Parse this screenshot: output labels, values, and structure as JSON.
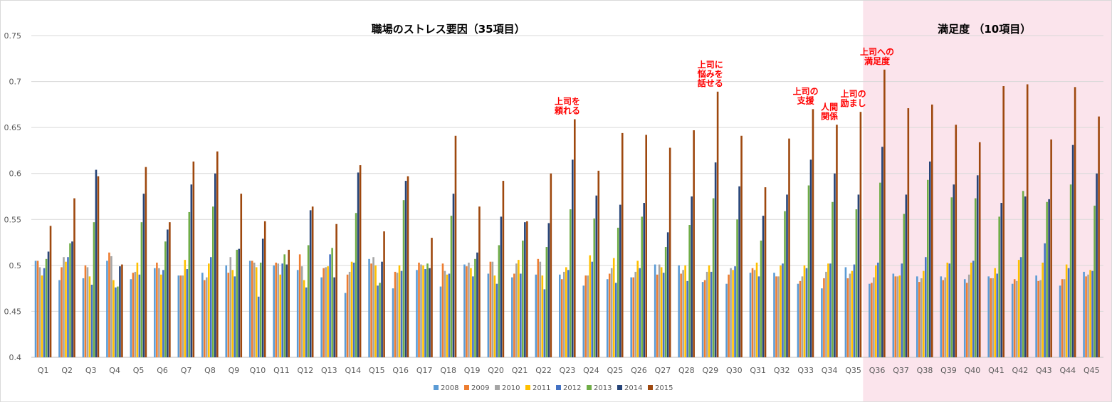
{
  "chart_data": {
    "type": "bar",
    "categories": [
      "Q1",
      "Q2",
      "Q3",
      "Q4",
      "Q5",
      "Q6",
      "Q7",
      "Q8",
      "Q9",
      "Q10",
      "Q11",
      "Q12",
      "Q13",
      "Q14",
      "Q15",
      "Q16",
      "Q17",
      "Q18",
      "Q19",
      "Q20",
      "Q21",
      "Q22",
      "Q23",
      "Q24",
      "Q25",
      "Q26",
      "Q27",
      "Q28",
      "Q29",
      "Q30",
      "Q31",
      "Q32",
      "Q33",
      "Q34",
      "Q35",
      "Q36",
      "Q37",
      "Q38",
      "Q39",
      "Q40",
      "Q41",
      "Q42",
      "Q43",
      "Q44",
      "Q45"
    ],
    "ylim": [
      0.4,
      0.75
    ],
    "yticks": [
      0.4,
      0.45,
      0.5,
      0.55,
      0.6,
      0.65,
      0.7,
      0.75
    ],
    "ytick_labels": [
      "0.4",
      "0.45",
      "0.5",
      "0.55",
      "0.6",
      "0.65",
      "0.7",
      "0.75"
    ],
    "grid": true,
    "legend_position": "bottom",
    "series": [
      {
        "name": "2008",
        "color": "#5b9bd5",
        "values": [
          0.505,
          0.484,
          0.486,
          0.505,
          0.485,
          0.497,
          0.489,
          0.492,
          0.5,
          0.505,
          0.5,
          0.495,
          0.487,
          0.47,
          0.507,
          0.475,
          0.495,
          0.477,
          0.501,
          0.491,
          0.487,
          0.49,
          0.49,
          0.478,
          0.485,
          0.487,
          0.501,
          0.5,
          0.482,
          0.48,
          0.492,
          0.492,
          0.48,
          0.475,
          0.498,
          0.48,
          0.491,
          0.488,
          0.488,
          0.485,
          0.488,
          0.48,
          0.489,
          0.478,
          0.493
        ]
      },
      {
        "name": "2009",
        "color": "#ed7d31",
        "values": [
          0.505,
          0.498,
          0.5,
          0.514,
          0.492,
          0.503,
          0.489,
          0.484,
          0.492,
          0.505,
          0.503,
          0.512,
          0.497,
          0.49,
          0.502,
          0.493,
          0.503,
          0.502,
          0.499,
          0.504,
          0.491,
          0.507,
          0.485,
          0.489,
          0.491,
          0.487,
          0.49,
          0.491,
          0.484,
          0.49,
          0.497,
          0.488,
          0.483,
          0.486,
          0.486,
          0.481,
          0.488,
          0.482,
          0.484,
          0.481,
          0.486,
          0.485,
          0.483,
          0.485,
          0.488
        ]
      },
      {
        "name": "2010",
        "color": "#a5a5a5",
        "values": [
          0.498,
          0.509,
          0.498,
          0.51,
          0.493,
          0.497,
          0.489,
          0.487,
          0.509,
          0.503,
          0.502,
          0.499,
          0.498,
          0.493,
          0.509,
          0.492,
          0.501,
          0.494,
          0.503,
          0.504,
          0.502,
          0.504,
          0.493,
          0.489,
          0.497,
          0.493,
          0.501,
          0.495,
          0.493,
          0.497,
          0.495,
          0.488,
          0.488,
          0.493,
          0.491,
          0.487,
          0.488,
          0.486,
          0.487,
          0.49,
          0.486,
          0.483,
          0.484,
          0.485,
          0.49
        ]
      },
      {
        "name": "2011",
        "color": "#ffc000",
        "values": [
          0.489,
          0.504,
          0.488,
          0.484,
          0.503,
          0.49,
          0.506,
          0.502,
          0.495,
          0.498,
          0.49,
          0.484,
          0.499,
          0.504,
          0.5,
          0.5,
          0.5,
          0.49,
          0.497,
          0.489,
          0.506,
          0.489,
          0.498,
          0.511,
          0.508,
          0.505,
          0.498,
          0.5,
          0.5,
          0.495,
          0.503,
          0.5,
          0.5,
          0.502,
          0.494,
          0.5,
          0.489,
          0.494,
          0.503,
          0.503,
          0.497,
          0.506,
          0.503,
          0.501,
          0.495
        ]
      },
      {
        "name": "2012",
        "color": "#4472c4",
        "values": [
          0.497,
          0.509,
          0.479,
          0.476,
          0.49,
          0.495,
          0.496,
          0.509,
          0.488,
          0.466,
          0.502,
          0.476,
          0.512,
          0.503,
          0.478,
          0.494,
          0.496,
          0.491,
          0.488,
          0.48,
          0.491,
          0.474,
          0.495,
          0.504,
          0.481,
          0.497,
          0.492,
          0.483,
          0.493,
          0.499,
          0.488,
          0.502,
          0.497,
          0.502,
          0.501,
          0.503,
          0.502,
          0.509,
          0.502,
          0.505,
          0.491,
          0.509,
          0.524,
          0.497,
          0.494
        ]
      },
      {
        "name": "2013",
        "color": "#70ad47",
        "values": [
          0.507,
          0.524,
          0.547,
          0.477,
          0.547,
          0.526,
          0.558,
          0.564,
          0.517,
          0.503,
          0.512,
          0.522,
          0.519,
          0.557,
          0.481,
          0.571,
          0.502,
          0.554,
          0.507,
          0.522,
          0.527,
          0.52,
          0.561,
          0.551,
          0.541,
          0.553,
          0.52,
          0.544,
          0.573,
          0.55,
          0.527,
          0.559,
          0.587,
          0.569,
          0.561,
          0.59,
          0.556,
          0.593,
          0.574,
          0.573,
          0.553,
          0.581,
          0.569,
          0.588,
          0.565
        ]
      },
      {
        "name": "2014",
        "color": "#264478",
        "values": [
          0.515,
          0.526,
          0.604,
          0.499,
          0.578,
          0.539,
          0.588,
          0.6,
          0.518,
          0.529,
          0.501,
          0.56,
          0.487,
          0.601,
          0.504,
          0.592,
          0.497,
          0.578,
          0.514,
          0.553,
          0.547,
          0.546,
          0.615,
          0.576,
          0.566,
          0.568,
          0.536,
          0.575,
          0.612,
          0.586,
          0.554,
          0.577,
          0.615,
          0.6,
          0.577,
          0.629,
          0.577,
          0.613,
          0.588,
          0.598,
          0.568,
          0.575,
          0.572,
          0.631,
          0.6
        ]
      },
      {
        "name": "2015",
        "color": "#9e480e",
        "values": [
          0.543,
          0.573,
          0.597,
          0.501,
          0.607,
          0.547,
          0.613,
          0.624,
          0.578,
          0.548,
          0.517,
          0.564,
          0.545,
          0.609,
          0.537,
          0.597,
          0.53,
          0.641,
          0.564,
          0.592,
          0.548,
          0.6,
          0.659,
          0.603,
          0.644,
          0.642,
          0.628,
          0.647,
          0.689,
          0.641,
          0.585,
          0.638,
          0.67,
          0.653,
          0.667,
          0.713,
          0.671,
          0.675,
          0.653,
          0.634,
          0.695,
          0.697,
          0.637,
          0.694,
          0.662
        ]
      }
    ],
    "sections": [
      {
        "title": "職場のストレス要因（35項目）",
        "start": "Q1",
        "end": "Q35"
      },
      {
        "title": "満足度 （10項目）",
        "start": "Q36",
        "end": "Q45",
        "highlight_color": "#fbe4ec"
      }
    ],
    "annotations": [
      {
        "category": "Q23",
        "lines": [
          "上司を",
          "頼れる"
        ]
      },
      {
        "category": "Q29",
        "lines": [
          "上司に",
          "悩みを",
          "話せる"
        ]
      },
      {
        "category": "Q33",
        "lines": [
          "上司の",
          "支援"
        ]
      },
      {
        "category": "Q34",
        "lines": [
          "人間",
          "関係"
        ]
      },
      {
        "category": "Q35",
        "lines": [
          "上司の",
          "励まし"
        ]
      },
      {
        "category": "Q36",
        "lines": [
          "上司への",
          "満足度"
        ]
      }
    ],
    "annotation_color": "#ff0000"
  }
}
